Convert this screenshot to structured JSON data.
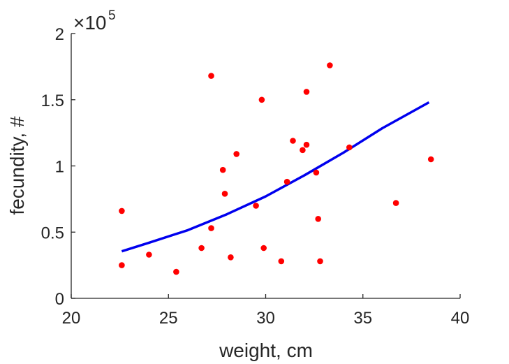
{
  "chart_data": {
    "type": "scatter",
    "title": "",
    "xlabel": "weight, cm",
    "ylabel": "fecundity, #",
    "xlim": [
      20,
      40
    ],
    "ylim": [
      0,
      200000
    ],
    "xticks": [
      "20",
      "25",
      "30",
      "35",
      "40"
    ],
    "yticks": [
      "0",
      "0.5",
      "1",
      "1.5",
      "2"
    ],
    "y_multiplier": {
      "base": "×10",
      "exponent": "5"
    },
    "grid": false,
    "colors": {
      "points": "#ff0000",
      "fit": "#0000ee",
      "axis": "#262626"
    },
    "series": [
      {
        "kind": "points",
        "x": [
          22.6,
          22.6,
          24.0,
          25.4,
          26.7,
          27.2,
          27.2,
          27.8,
          27.9,
          28.2,
          28.5,
          29.5,
          29.8,
          29.9,
          30.8,
          31.1,
          31.4,
          31.9,
          32.1,
          32.1,
          32.6,
          32.7,
          32.8,
          33.3,
          34.3,
          36.7,
          38.5
        ],
        "y": [
          66000,
          25000,
          33000,
          20000,
          38000,
          168000,
          53000,
          97000,
          79000,
          31000,
          109000,
          70000,
          150000,
          38000,
          28000,
          88000,
          119000,
          112000,
          156000,
          116000,
          95000,
          60000,
          28000,
          176000,
          114000,
          72000,
          105000
        ]
      },
      {
        "kind": "fit-line",
        "x": [
          22.6,
          24,
          26,
          28,
          30,
          32,
          34,
          36,
          38.4
        ],
        "y": [
          35500,
          42000,
          51500,
          63500,
          77000,
          93000,
          110000,
          128500,
          148000
        ]
      }
    ]
  }
}
